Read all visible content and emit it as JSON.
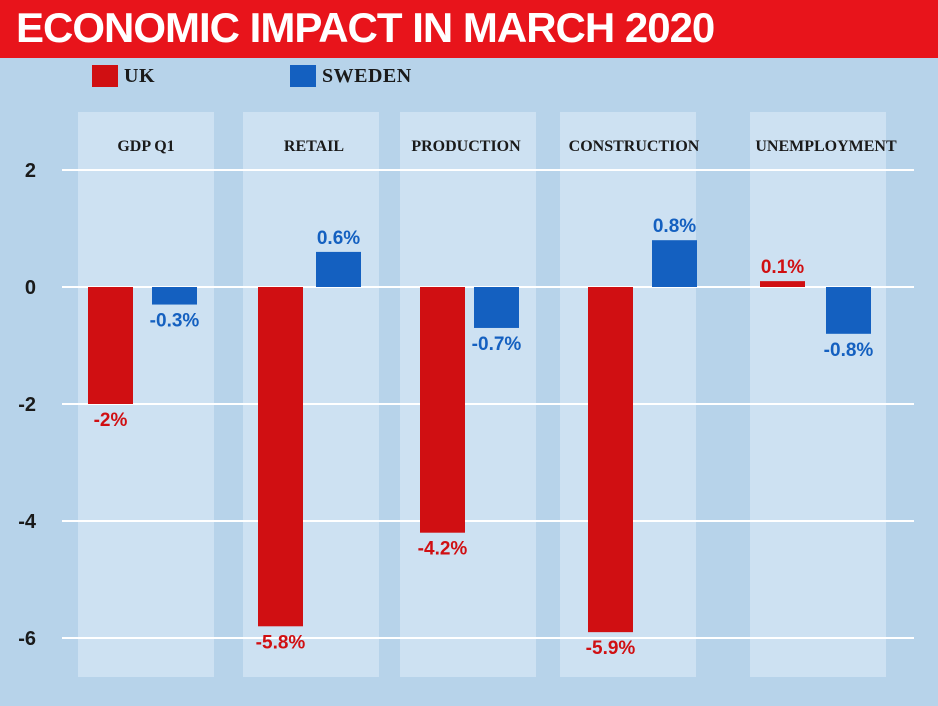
{
  "title": "ECONOMIC IMPACT IN MARCH 2020",
  "colors": {
    "uk": "#d00f12",
    "sweden": "#1460c0",
    "title_bg": "#e8141b",
    "background": "#b7d3ea",
    "panel": "#cde1f2"
  },
  "chart_data": {
    "type": "bar",
    "title": "ECONOMIC IMPACT IN MARCH 2020",
    "categories": [
      "GDP Q1",
      "RETAIL",
      "PRODUCTION",
      "CONSTRUCTION",
      "UNEMPLOYMENT"
    ],
    "series": [
      {
        "name": "UK",
        "values": [
          -2,
          -5.8,
          -4.2,
          -5.9,
          0.1
        ],
        "labels": [
          "-2%",
          "-5.8%",
          "-4.2%",
          "-5.9%",
          "0.1%"
        ]
      },
      {
        "name": "SWEDEN",
        "values": [
          -0.3,
          0.6,
          -0.7,
          0.8,
          -0.8
        ],
        "labels": [
          "-0.3%",
          "0.6%",
          "-0.7%",
          "0.8%",
          "-0.8%"
        ]
      }
    ],
    "yticks": [
      2,
      0,
      -2,
      -4,
      -6
    ],
    "ylim": [
      -6.6,
      2.6
    ],
    "xlabel": "",
    "ylabel": "",
    "grid": true,
    "legend": "top-left"
  }
}
